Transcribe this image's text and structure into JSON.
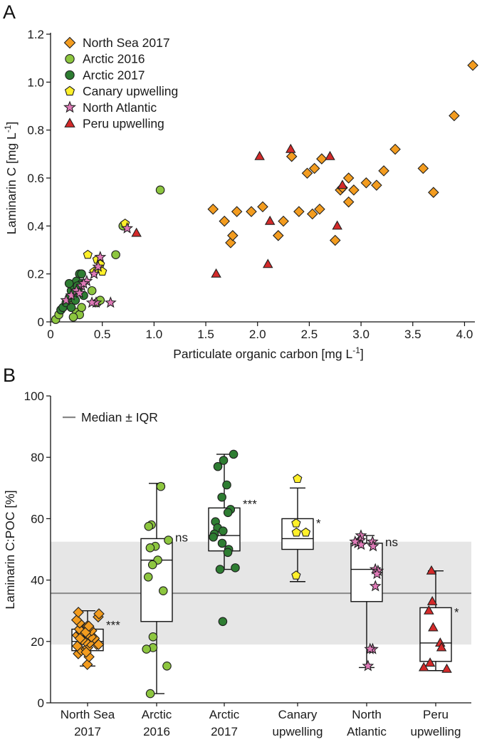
{
  "chart_data": [
    {
      "panel": "A",
      "type": "scatter",
      "xlabel": "Particulate organic carbon [mg L",
      "xlabel_sup": "-1",
      "xlabel_end": "]",
      "ylabel": "Laminarin C [mg L",
      "ylabel_sup": "-1",
      "ylabel_end": "]",
      "xlim": [
        0,
        4.1
      ],
      "ylim": [
        0,
        1.2
      ],
      "xticks": [
        "0",
        "0.5",
        "1.0",
        "1.5",
        "2.0",
        "2.5",
        "3.0",
        "3.5",
        "4.0"
      ],
      "yticks": [
        "0",
        "0.2",
        "0.4",
        "0.6",
        "0.8",
        "1.0",
        "1.2"
      ],
      "legend_position": "top-left",
      "series": [
        {
          "name": "North Sea 2017",
          "color": "#f39c1f",
          "marker": "diamond",
          "points": [
            [
              1.57,
              0.47
            ],
            [
              1.68,
              0.42
            ],
            [
              1.74,
              0.33
            ],
            [
              1.76,
              0.36
            ],
            [
              1.8,
              0.46
            ],
            [
              1.94,
              0.46
            ],
            [
              2.05,
              0.48
            ],
            [
              2.2,
              0.36
            ],
            [
              2.25,
              0.42
            ],
            [
              2.33,
              0.69
            ],
            [
              2.4,
              0.46
            ],
            [
              2.48,
              0.62
            ],
            [
              2.53,
              0.45
            ],
            [
              2.55,
              0.64
            ],
            [
              2.6,
              0.47
            ],
            [
              2.62,
              0.68
            ],
            [
              2.75,
              0.34
            ],
            [
              2.8,
              0.55
            ],
            [
              2.82,
              0.56
            ],
            [
              2.88,
              0.5
            ],
            [
              2.88,
              0.6
            ],
            [
              2.93,
              0.55
            ],
            [
              3.05,
              0.58
            ],
            [
              3.15,
              0.57
            ],
            [
              3.22,
              0.63
            ],
            [
              3.33,
              0.72
            ],
            [
              3.6,
              0.64
            ],
            [
              3.7,
              0.54
            ],
            [
              3.9,
              0.86
            ],
            [
              4.08,
              1.07
            ]
          ]
        },
        {
          "name": "Arctic 2016",
          "color": "#8dc63f",
          "marker": "circle",
          "points": [
            [
              0.05,
              0.01
            ],
            [
              0.08,
              0.03
            ],
            [
              0.1,
              0.05
            ],
            [
              0.15,
              0.07
            ],
            [
              0.2,
              0.09
            ],
            [
              0.25,
              0.04
            ],
            [
              0.28,
              0.03
            ],
            [
              0.3,
              0.06
            ],
            [
              0.45,
              0.08
            ],
            [
              0.48,
              0.09
            ],
            [
              0.63,
              0.28
            ],
            [
              0.7,
              0.4
            ],
            [
              1.06,
              0.55
            ],
            [
              0.22,
              0.02
            ],
            [
              0.4,
              0.13
            ]
          ]
        },
        {
          "name": "Arctic 2017",
          "color": "#2e7d32",
          "marker": "circle",
          "points": [
            [
              0.1,
              0.05
            ],
            [
              0.12,
              0.06
            ],
            [
              0.15,
              0.08
            ],
            [
              0.18,
              0.1
            ],
            [
              0.2,
              0.13
            ],
            [
              0.22,
              0.15
            ],
            [
              0.23,
              0.12
            ],
            [
              0.25,
              0.17
            ],
            [
              0.27,
              0.14
            ],
            [
              0.28,
              0.2
            ],
            [
              0.3,
              0.16
            ],
            [
              0.32,
              0.11
            ],
            [
              0.18,
              0.16
            ],
            [
              0.24,
              0.09
            ],
            [
              0.3,
              0.2
            ],
            [
              0.2,
              0.06
            ],
            [
              0.26,
              0.15
            ]
          ]
        },
        {
          "name": "Canary upwelling",
          "color": "#fff02a",
          "marker": "pentagon",
          "points": [
            [
              0.36,
              0.28
            ],
            [
              0.42,
              0.21
            ],
            [
              0.45,
              0.26
            ],
            [
              0.48,
              0.24
            ],
            [
              0.5,
              0.21
            ],
            [
              0.72,
              0.41
            ]
          ]
        },
        {
          "name": "North Atlantic",
          "color": "#e07ab8",
          "marker": "star",
          "points": [
            [
              0.15,
              0.09
            ],
            [
              0.2,
              0.11
            ],
            [
              0.25,
              0.13
            ],
            [
              0.3,
              0.15
            ],
            [
              0.35,
              0.17
            ],
            [
              0.42,
              0.2
            ],
            [
              0.44,
              0.08
            ],
            [
              0.46,
              0.23
            ],
            [
              0.48,
              0.27
            ],
            [
              0.58,
              0.08
            ],
            [
              0.74,
              0.39
            ],
            [
              0.4,
              0.08
            ],
            [
              0.28,
              0.12
            ],
            [
              0.32,
              0.16
            ]
          ]
        },
        {
          "name": "Peru upwelling",
          "color": "#d42a2a",
          "marker": "triangle",
          "points": [
            [
              0.83,
              0.37
            ],
            [
              1.6,
              0.2
            ],
            [
              2.02,
              0.69
            ],
            [
              2.1,
              0.24
            ],
            [
              2.12,
              0.42
            ],
            [
              2.32,
              0.72
            ],
            [
              2.7,
              0.69
            ],
            [
              2.77,
              0.4
            ],
            [
              2.82,
              0.57
            ]
          ]
        }
      ]
    },
    {
      "panel": "B",
      "type": "box",
      "ylabel": "Laminarin C:POC [%]",
      "ylim": [
        0,
        100
      ],
      "yticks": [
        "0",
        "20",
        "40",
        "60",
        "80",
        "100"
      ],
      "legend_label": "Median ± IQR",
      "reference": {
        "median": 35.7,
        "q1": 19,
        "q3": 52.5
      },
      "groups": [
        {
          "label_line1": "North Sea",
          "label_line2": "2017",
          "color": "#f39c1f",
          "marker": "diamond",
          "box": {
            "q1": 17,
            "median": 20,
            "q3": 24,
            "whisker_low": 12,
            "whisker_high": 30
          },
          "significance": "***",
          "points": [
            12.5,
            15,
            16,
            17,
            17.5,
            18,
            18.5,
            19,
            19.5,
            20,
            20.5,
            21,
            21.5,
            22,
            22.5,
            23,
            23.5,
            24,
            24.5,
            25,
            26,
            27,
            28,
            29,
            29.5,
            16.5,
            19,
            21,
            23,
            25
          ]
        },
        {
          "label_line1": "Arctic",
          "label_line2": "2016",
          "color": "#8dc63f",
          "marker": "circle",
          "box": {
            "q1": 26.5,
            "median": 46.5,
            "q3": 53.5,
            "whisker_low": 3,
            "whisker_high": 71.5
          },
          "significance": "ns",
          "points": [
            70.5,
            58,
            57.5,
            53,
            51,
            50.5,
            46.5,
            45,
            41,
            36.5,
            21.5,
            18,
            17.5,
            12,
            3
          ]
        },
        {
          "label_line1": "Arctic",
          "label_line2": "2017",
          "color": "#2e7d32",
          "marker": "circle",
          "box": {
            "q1": 49.5,
            "median": 54.5,
            "q3": 63.5,
            "whisker_low": 43.5,
            "whisker_high": 81
          },
          "significance": "***",
          "points": [
            81,
            79,
            77,
            71,
            67,
            63,
            62,
            59,
            57,
            56,
            55,
            54,
            52,
            50,
            49,
            44,
            43.5,
            26.5
          ]
        },
        {
          "label_line1": "Canary",
          "label_line2": "upwelling",
          "color": "#fff02a",
          "marker": "pentagon",
          "box": {
            "q1": 50,
            "median": 53.5,
            "q3": 60,
            "whisker_low": 39.5,
            "whisker_high": 70
          },
          "significance": "*",
          "points": [
            73,
            58.5,
            55.5,
            55.5,
            41.5
          ]
        },
        {
          "label_line1": "North",
          "label_line2": "Atlantic",
          "color": "#e07ab8",
          "marker": "star",
          "box": {
            "q1": 33,
            "median": 43.5,
            "q3": 52,
            "whisker_low": 11.5,
            "whisker_high": 54.5
          },
          "significance": "ns",
          "points": [
            54.5,
            53,
            52.5,
            52,
            51.5,
            51,
            43.5,
            43,
            42,
            38,
            17.5,
            17.5,
            12,
            52.5
          ]
        },
        {
          "label_line1": "Peru",
          "label_line2": "upwelling",
          "color": "#d42a2a",
          "marker": "triangle",
          "box": {
            "q1": 13.5,
            "median": 19.5,
            "q3": 31,
            "whisker_low": 10.5,
            "whisker_high": 43
          },
          "significance": "*",
          "points": [
            43,
            33,
            30,
            24.5,
            19.5,
            18,
            13,
            11,
            11.5
          ]
        }
      ]
    }
  ]
}
